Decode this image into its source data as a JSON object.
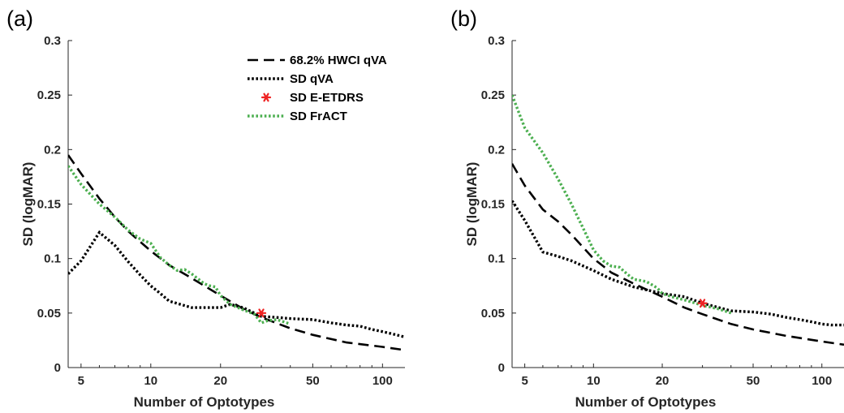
{
  "chart_data": [
    {
      "type": "line",
      "panel_label": "(a)",
      "xlabel": "Number of Optotypes",
      "ylabel": "SD (logMAR)",
      "xscale": "log",
      "xlim": [
        4.4,
        125
      ],
      "ylim": [
        0,
        0.3
      ],
      "xticks": [
        5,
        10,
        20,
        50,
        100
      ],
      "xtick_labels": [
        "5",
        "10",
        "20",
        "50",
        "100"
      ],
      "yticks": [
        0,
        0.05,
        0.1,
        0.15,
        0.2,
        0.25,
        0.3
      ],
      "ytick_labels": [
        "0",
        "0.05",
        "0.1",
        "0.15",
        "0.2",
        "0.25",
        "0.3"
      ],
      "grid": false,
      "legend_position": "top-right",
      "legend": [
        {
          "label": "68.2% HWCI qVA",
          "series": "hwci",
          "style": "dashed",
          "color": "#000000"
        },
        {
          "label": "SD qVA",
          "series": "sdqva",
          "style": "dotted",
          "color": "#000000"
        },
        {
          "label": "SD E-ETDRS",
          "series": "etdrs",
          "style": "marker",
          "color": "#ee2222"
        },
        {
          "label": "SD FrACT",
          "series": "fract",
          "style": "dotted",
          "color": "#4caf50"
        }
      ],
      "series": [
        {
          "key": "hwci",
          "name": "68.2% HWCI qVA",
          "style": "dashed",
          "color": "#000000",
          "x": [
            4.4,
            5,
            6,
            7,
            8,
            10,
            12,
            15,
            20,
            25,
            30,
            40,
            50,
            70,
            100,
            125
          ],
          "y": [
            0.195,
            0.178,
            0.155,
            0.138,
            0.125,
            0.107,
            0.094,
            0.082,
            0.066,
            0.054,
            0.046,
            0.036,
            0.03,
            0.023,
            0.019,
            0.016
          ]
        },
        {
          "key": "sdqva",
          "name": "SD qVA",
          "style": "dotted",
          "color": "#000000",
          "x": [
            4.4,
            5,
            6,
            7,
            8,
            9,
            10,
            11,
            12,
            15,
            17,
            20,
            22,
            25,
            30,
            35,
            40,
            50,
            60,
            70,
            80,
            90,
            100,
            110,
            125
          ],
          "y": [
            0.086,
            0.098,
            0.124,
            0.112,
            0.097,
            0.085,
            0.075,
            0.068,
            0.061,
            0.055,
            0.055,
            0.055,
            0.058,
            0.055,
            0.047,
            0.046,
            0.045,
            0.044,
            0.041,
            0.039,
            0.038,
            0.035,
            0.033,
            0.031,
            0.028
          ]
        },
        {
          "key": "fract",
          "name": "SD FrACT",
          "style": "dotted",
          "color": "#4caf50",
          "x": [
            4.4,
            5,
            6,
            7,
            8,
            9,
            10,
            11,
            12,
            13,
            14,
            15,
            17,
            18,
            19,
            20,
            22,
            25,
            28,
            30,
            32,
            35,
            40
          ],
          "y": [
            0.185,
            0.168,
            0.15,
            0.138,
            0.126,
            0.118,
            0.114,
            0.101,
            0.094,
            0.089,
            0.09,
            0.086,
            0.077,
            0.075,
            0.074,
            0.066,
            0.058,
            0.053,
            0.049,
            0.041,
            0.043,
            0.044,
            0.04
          ]
        },
        {
          "key": "etdrs",
          "name": "SD E-ETDRS",
          "style": "marker",
          "color": "#ee2222",
          "x": [
            30
          ],
          "y": [
            0.05
          ]
        }
      ]
    },
    {
      "type": "line",
      "panel_label": "(b)",
      "xlabel": "Number of Optotypes",
      "ylabel": "SD (logMAR)",
      "xscale": "log",
      "xlim": [
        4.4,
        125
      ],
      "ylim": [
        0,
        0.3
      ],
      "xticks": [
        5,
        10,
        20,
        50,
        100
      ],
      "xtick_labels": [
        "5",
        "10",
        "20",
        "50",
        "100"
      ],
      "yticks": [
        0,
        0.05,
        0.1,
        0.15,
        0.2,
        0.25,
        0.3
      ],
      "ytick_labels": [
        "0",
        "0.05",
        "0.1",
        "0.15",
        "0.2",
        "0.25",
        "0.3"
      ],
      "grid": false,
      "series": [
        {
          "key": "hwci",
          "name": "68.2% HWCI qVA",
          "style": "dashed",
          "color": "#000000",
          "x": [
            4.4,
            5,
            6,
            7,
            8,
            10,
            12,
            15,
            20,
            25,
            30,
            40,
            50,
            70,
            100,
            125
          ],
          "y": [
            0.187,
            0.167,
            0.145,
            0.134,
            0.122,
            0.1,
            0.087,
            0.077,
            0.065,
            0.055,
            0.049,
            0.04,
            0.035,
            0.029,
            0.024,
            0.021
          ]
        },
        {
          "key": "sdqva",
          "name": "SD qVA",
          "style": "dotted",
          "color": "#000000",
          "x": [
            4.4,
            5,
            6,
            7,
            8,
            10,
            12,
            15,
            20,
            25,
            30,
            40,
            50,
            60,
            70,
            80,
            90,
            100,
            110,
            125
          ],
          "y": [
            0.153,
            0.135,
            0.106,
            0.102,
            0.098,
            0.089,
            0.081,
            0.074,
            0.068,
            0.065,
            0.059,
            0.052,
            0.051,
            0.049,
            0.046,
            0.044,
            0.042,
            0.04,
            0.039,
            0.039
          ]
        },
        {
          "key": "fract",
          "name": "SD FrACT",
          "style": "dotted",
          "color": "#4caf50",
          "x": [
            4.4,
            5,
            6,
            7,
            8,
            9,
            10,
            11,
            12,
            13,
            14,
            15,
            17,
            18,
            19,
            20,
            22,
            25,
            28,
            30,
            35,
            40
          ],
          "y": [
            0.25,
            0.22,
            0.197,
            0.173,
            0.15,
            0.128,
            0.108,
            0.098,
            0.093,
            0.092,
            0.086,
            0.081,
            0.079,
            0.076,
            0.073,
            0.068,
            0.065,
            0.062,
            0.059,
            0.057,
            0.054,
            0.05
          ]
        },
        {
          "key": "etdrs",
          "name": "SD E-ETDRS",
          "style": "marker",
          "color": "#ee2222",
          "x": [
            30
          ],
          "y": [
            0.059
          ]
        }
      ]
    }
  ]
}
